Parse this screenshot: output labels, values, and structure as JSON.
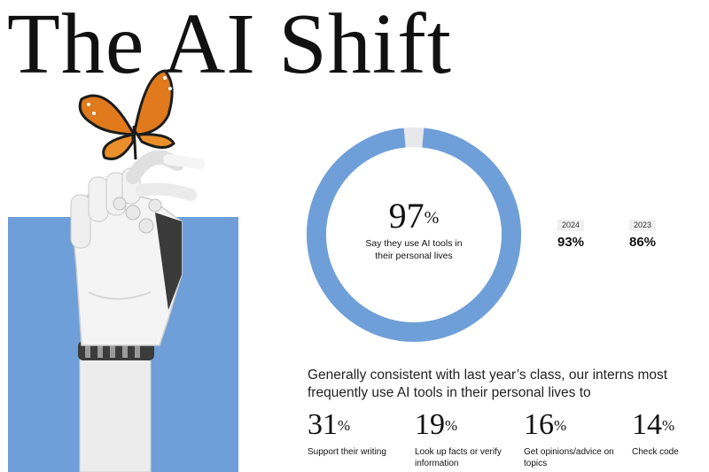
{
  "title": "The AI Shift",
  "colors": {
    "accent_blue": "#6f9fd8",
    "remainder_gray": "#e6e8ec",
    "text": "#111111"
  },
  "donut": {
    "value": "97",
    "unit": "%",
    "caption": "Say they use AI tools in their personal lives"
  },
  "comparisons": [
    {
      "year": "2024",
      "value": "93%"
    },
    {
      "year": "2023",
      "value": "86%"
    }
  ],
  "intro_text": "Generally consistent with last year’s class, our interns most frequently use AI tools in their personal lives to",
  "stats": [
    {
      "value": "31",
      "unit": "%",
      "label": "Support their writing"
    },
    {
      "value": "19",
      "unit": "%",
      "label": "Look up facts or verify information"
    },
    {
      "value": "16",
      "unit": "%",
      "label": "Get opinions/advice on topics"
    },
    {
      "value": "14",
      "unit": "%",
      "label": "Check code"
    }
  ],
  "chart_data": [
    {
      "type": "pie",
      "categories": [
        "Say they use AI tools in their personal lives",
        ""
      ],
      "values": [
        97,
        3
      ],
      "colors": [
        "#6f9fd8",
        "#e6e8ec"
      ]
    },
    {
      "type": "table",
      "categories": [
        "2024",
        "2023"
      ],
      "values": [
        93,
        86
      ]
    },
    {
      "type": "table",
      "categories": [
        "Support their writing",
        "Look up facts or verify information",
        "Get opinions/advice on topics",
        "Check code"
      ],
      "values": [
        31,
        19,
        16,
        14
      ]
    }
  ]
}
